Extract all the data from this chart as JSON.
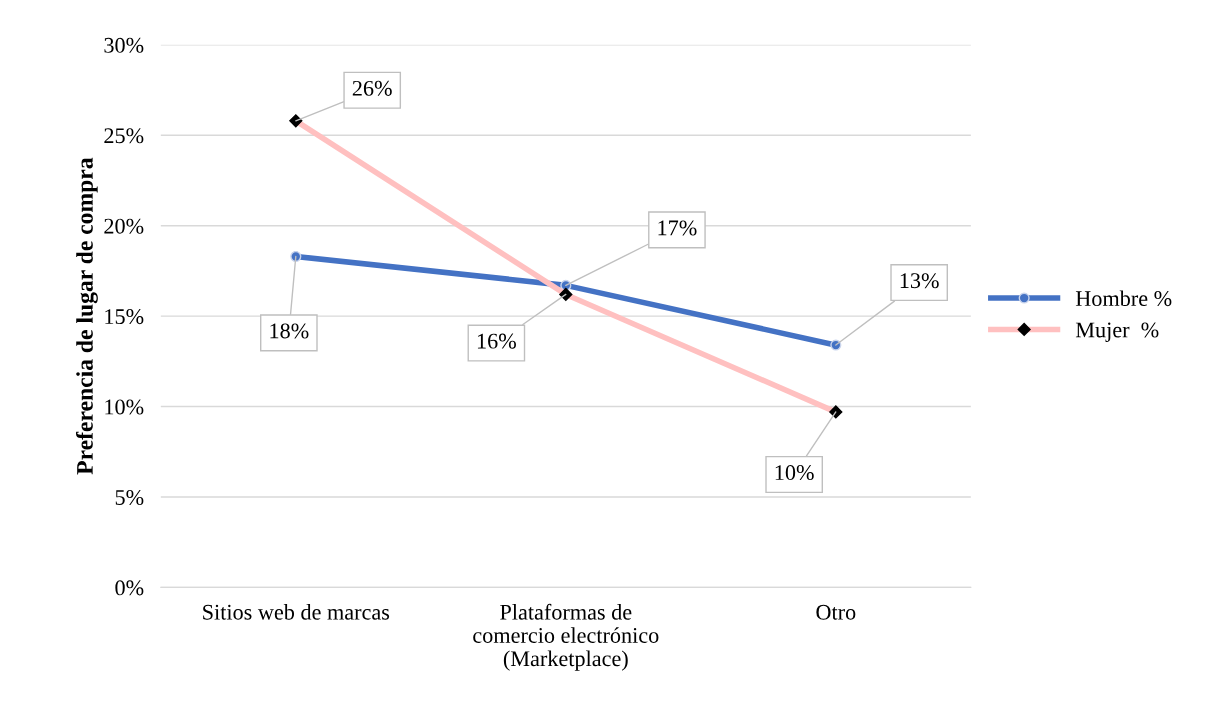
{
  "chart_data": {
    "type": "line",
    "ylabel": "Preferencia de lugar de compra",
    "categories": [
      "Sitios web de marcas",
      "Plataformas de\ncomercio electrónico\n(Marketplace)",
      "Otro"
    ],
    "series": [
      {
        "name": "Hombre %",
        "color": "#4472c4",
        "marker": "circle",
        "values": [
          18.3,
          16.7,
          13.4
        ],
        "value_labels": [
          "18%",
          "17%",
          "13%"
        ]
      },
      {
        "name": "Mujer  %",
        "color": "#ffc0c0",
        "marker": "diamond",
        "values": [
          25.8,
          16.2,
          9.7
        ],
        "value_labels": [
          "26%",
          "16%",
          "10%"
        ]
      }
    ],
    "ylim": [
      0,
      30
    ],
    "yticks": [
      {
        "value": 0,
        "label": "0%"
      },
      {
        "value": 5,
        "label": "5%"
      },
      {
        "value": 10,
        "label": "10%"
      },
      {
        "value": 15,
        "label": "15%"
      },
      {
        "value": 20,
        "label": "20%"
      },
      {
        "value": 25,
        "label": "25%"
      },
      {
        "value": 30,
        "label": "30%"
      }
    ],
    "grid": "y",
    "legend": "right"
  }
}
